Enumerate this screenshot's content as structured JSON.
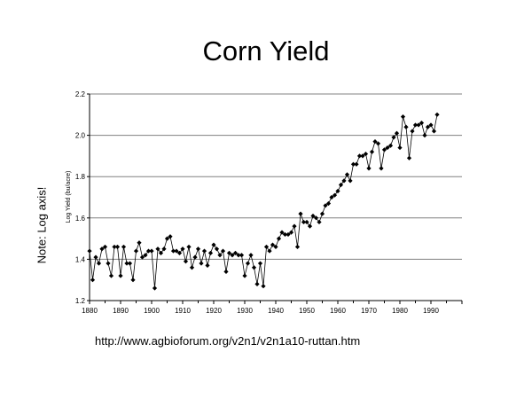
{
  "slide": {
    "title": "Corn Yield",
    "side_note": "Note: Log axis!",
    "source_url": "http://www.agbioforum.org/v2n1/v2n1a10-ruttan.htm"
  },
  "chart_data": {
    "type": "line",
    "title": "",
    "xlabel": "",
    "ylabel": "Log Yield (bu/acre)",
    "xlim": [
      1880,
      2000
    ],
    "ylim": [
      1.2,
      2.2
    ],
    "x_ticks": [
      1880,
      1890,
      1900,
      1910,
      1920,
      1930,
      1940,
      1950,
      1960,
      1970,
      1980,
      1990
    ],
    "y_ticks": [
      1.2,
      1.4,
      1.6,
      1.8,
      2.0,
      2.2
    ],
    "y_tick_labels": [
      "1.2",
      "1.4",
      "1.6",
      "1.8",
      "2.0",
      "2.2"
    ],
    "grid": "horizontal",
    "marker": "diamond",
    "line_color": "#000000",
    "series": [
      {
        "name": "",
        "x": [
          1880,
          1881,
          1882,
          1883,
          1884,
          1885,
          1886,
          1887,
          1888,
          1889,
          1890,
          1891,
          1892,
          1893,
          1894,
          1895,
          1896,
          1897,
          1898,
          1899,
          1900,
          1901,
          1902,
          1903,
          1904,
          1905,
          1906,
          1907,
          1908,
          1909,
          1910,
          1911,
          1912,
          1913,
          1914,
          1915,
          1916,
          1917,
          1918,
          1919,
          1920,
          1921,
          1922,
          1923,
          1924,
          1925,
          1926,
          1927,
          1928,
          1929,
          1930,
          1931,
          1932,
          1933,
          1934,
          1935,
          1936,
          1937,
          1938,
          1939,
          1940,
          1941,
          1942,
          1943,
          1944,
          1945,
          1946,
          1947,
          1948,
          1949,
          1950,
          1951,
          1952,
          1953,
          1954,
          1955,
          1956,
          1957,
          1958,
          1959,
          1960,
          1961,
          1962,
          1963,
          1964,
          1965,
          1966,
          1967,
          1968,
          1969,
          1970,
          1971,
          1972,
          1973,
          1974,
          1975,
          1976,
          1977,
          1978,
          1979,
          1980,
          1981,
          1982,
          1983,
          1984,
          1985,
          1986,
          1987,
          1988,
          1989,
          1990,
          1991,
          1992
        ],
        "y": [
          1.44,
          1.3,
          1.41,
          1.38,
          1.45,
          1.46,
          1.38,
          1.32,
          1.46,
          1.46,
          1.32,
          1.46,
          1.38,
          1.38,
          1.3,
          1.44,
          1.48,
          1.41,
          1.42,
          1.44,
          1.44,
          1.26,
          1.45,
          1.43,
          1.45,
          1.5,
          1.51,
          1.44,
          1.44,
          1.43,
          1.45,
          1.39,
          1.46,
          1.36,
          1.41,
          1.45,
          1.38,
          1.44,
          1.37,
          1.43,
          1.47,
          1.45,
          1.42,
          1.44,
          1.34,
          1.43,
          1.42,
          1.43,
          1.42,
          1.42,
          1.32,
          1.38,
          1.42,
          1.36,
          1.28,
          1.38,
          1.27,
          1.46,
          1.44,
          1.47,
          1.46,
          1.5,
          1.53,
          1.52,
          1.52,
          1.53,
          1.56,
          1.46,
          1.62,
          1.58,
          1.58,
          1.56,
          1.61,
          1.6,
          1.58,
          1.62,
          1.66,
          1.67,
          1.7,
          1.71,
          1.73,
          1.76,
          1.78,
          1.81,
          1.78,
          1.86,
          1.86,
          1.9,
          1.9,
          1.91,
          1.84,
          1.92,
          1.97,
          1.96,
          1.84,
          1.93,
          1.94,
          1.95,
          1.99,
          2.01,
          1.94,
          2.09,
          2.04,
          1.89,
          2.02,
          2.05,
          2.05,
          2.06,
          2.0,
          2.04,
          2.05,
          2.02,
          2.1
        ]
      }
    ]
  }
}
